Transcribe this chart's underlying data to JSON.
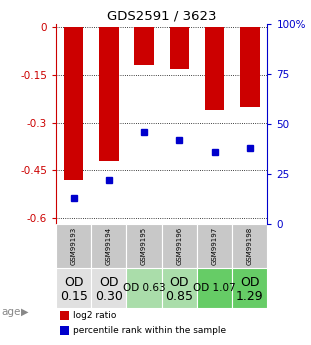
{
  "title": "GDS2591 / 3623",
  "samples": [
    "GSM99193",
    "GSM99194",
    "GSM99195",
    "GSM99196",
    "GSM99197",
    "GSM99198"
  ],
  "log2_ratio": [
    -0.48,
    -0.42,
    -0.12,
    -0.13,
    -0.26,
    -0.25
  ],
  "percentile_rank": [
    13,
    22,
    46,
    42,
    36,
    38
  ],
  "bar_color": "#cc0000",
  "dot_color": "#0000cc",
  "age_labels_line1": [
    "OD",
    "OD",
    "OD 0.63",
    "OD",
    "OD 1.07",
    "OD"
  ],
  "age_labels_line2": [
    "0.15",
    "0.30",
    "",
    "0.85",
    "",
    "1.29"
  ],
  "age_bg_colors": [
    "#e0e0e0",
    "#e0e0e0",
    "#aaddaa",
    "#aaddaa",
    "#66cc66",
    "#66cc66"
  ],
  "age_font_sizes_big": [
    9,
    9,
    7.5,
    9,
    7.5,
    9
  ],
  "gsm_bg": "#c8c8c8",
  "ylim_left": [
    -0.62,
    0.01
  ],
  "ylim_right": [
    0,
    100
  ],
  "yticks_left": [
    0,
    -0.15,
    -0.3,
    -0.45,
    -0.6
  ],
  "yticks_right": [
    100,
    75,
    50,
    25,
    0
  ],
  "left_axis_color": "#cc0000",
  "right_axis_color": "#0000cc",
  "background_color": "#ffffff",
  "bar_width": 0.55,
  "dot_size": 4
}
